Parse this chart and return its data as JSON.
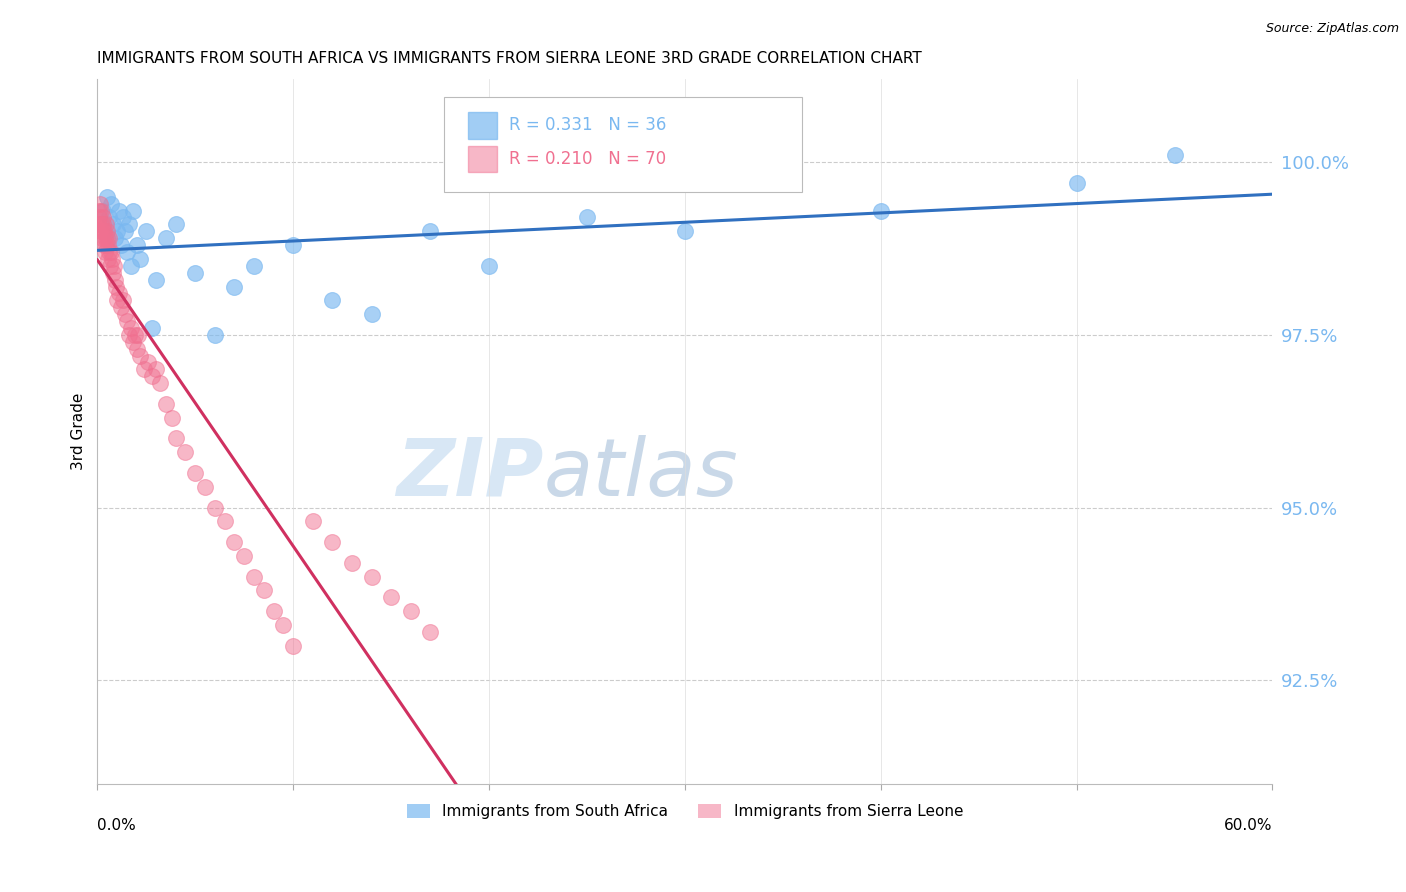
{
  "title": "IMMIGRANTS FROM SOUTH AFRICA VS IMMIGRANTS FROM SIERRA LEONE 3RD GRADE CORRELATION CHART",
  "source": "Source: ZipAtlas.com",
  "ylabel": "3rd Grade",
  "yticks": [
    92.5,
    95.0,
    97.5,
    100.0
  ],
  "ytick_labels": [
    "92.5%",
    "95.0%",
    "97.5%",
    "100.0%"
  ],
  "xmin": 0.0,
  "xmax": 60.0,
  "ymin": 91.0,
  "ymax": 101.2,
  "r_blue": 0.331,
  "n_blue": 36,
  "r_pink": 0.21,
  "n_pink": 70,
  "blue_color": "#7ab8f0",
  "pink_color": "#f07090",
  "blue_line_color": "#3070c0",
  "pink_line_color": "#d03060",
  "legend_blue": "Immigrants from South Africa",
  "legend_pink": "Immigrants from Sierra Leone",
  "watermark_zip": "ZIP",
  "watermark_atlas": "atlas",
  "blue_scatter_x": [
    0.3,
    0.5,
    0.6,
    0.7,
    0.8,
    0.9,
    1.0,
    1.1,
    1.2,
    1.3,
    1.4,
    1.5,
    1.6,
    1.7,
    1.8,
    2.0,
    2.2,
    2.5,
    2.8,
    3.0,
    3.5,
    4.0,
    5.0,
    6.0,
    7.0,
    8.0,
    10.0,
    12.0,
    14.0,
    17.0,
    20.0,
    25.0,
    30.0,
    40.0,
    50.0,
    55.0
  ],
  "blue_scatter_y": [
    99.3,
    99.5,
    99.2,
    99.4,
    99.1,
    98.9,
    99.0,
    99.3,
    98.8,
    99.2,
    99.0,
    98.7,
    99.1,
    98.5,
    99.3,
    98.8,
    98.6,
    99.0,
    97.6,
    98.3,
    98.9,
    99.1,
    98.4,
    97.5,
    98.2,
    98.5,
    98.8,
    98.0,
    97.8,
    99.0,
    98.5,
    99.2,
    99.0,
    99.3,
    99.7,
    100.1
  ],
  "pink_scatter_x": [
    0.05,
    0.08,
    0.1,
    0.12,
    0.15,
    0.18,
    0.2,
    0.22,
    0.25,
    0.28,
    0.3,
    0.32,
    0.35,
    0.38,
    0.4,
    0.42,
    0.45,
    0.48,
    0.5,
    0.52,
    0.55,
    0.58,
    0.6,
    0.65,
    0.7,
    0.75,
    0.8,
    0.85,
    0.9,
    0.95,
    1.0,
    1.1,
    1.2,
    1.3,
    1.4,
    1.5,
    1.6,
    1.7,
    1.8,
    1.9,
    2.0,
    2.1,
    2.2,
    2.4,
    2.6,
    2.8,
    3.0,
    3.2,
    3.5,
    3.8,
    4.0,
    4.5,
    5.0,
    5.5,
    6.0,
    6.5,
    7.0,
    7.5,
    8.0,
    8.5,
    9.0,
    9.5,
    10.0,
    11.0,
    12.0,
    13.0,
    14.0,
    15.0,
    16.0,
    17.0
  ],
  "pink_scatter_y": [
    99.1,
    99.3,
    99.2,
    99.0,
    99.4,
    99.1,
    99.3,
    99.0,
    98.9,
    99.2,
    99.1,
    98.8,
    99.0,
    98.9,
    98.7,
    99.1,
    98.8,
    99.0,
    98.9,
    98.6,
    98.8,
    98.7,
    98.9,
    98.5,
    98.7,
    98.6,
    98.4,
    98.5,
    98.3,
    98.2,
    98.0,
    98.1,
    97.9,
    98.0,
    97.8,
    97.7,
    97.5,
    97.6,
    97.4,
    97.5,
    97.3,
    97.5,
    97.2,
    97.0,
    97.1,
    96.9,
    97.0,
    96.8,
    96.5,
    96.3,
    96.0,
    95.8,
    95.5,
    95.3,
    95.0,
    94.8,
    94.5,
    94.3,
    94.0,
    93.8,
    93.5,
    93.3,
    93.0,
    94.8,
    94.5,
    94.2,
    94.0,
    93.7,
    93.5,
    93.2
  ]
}
